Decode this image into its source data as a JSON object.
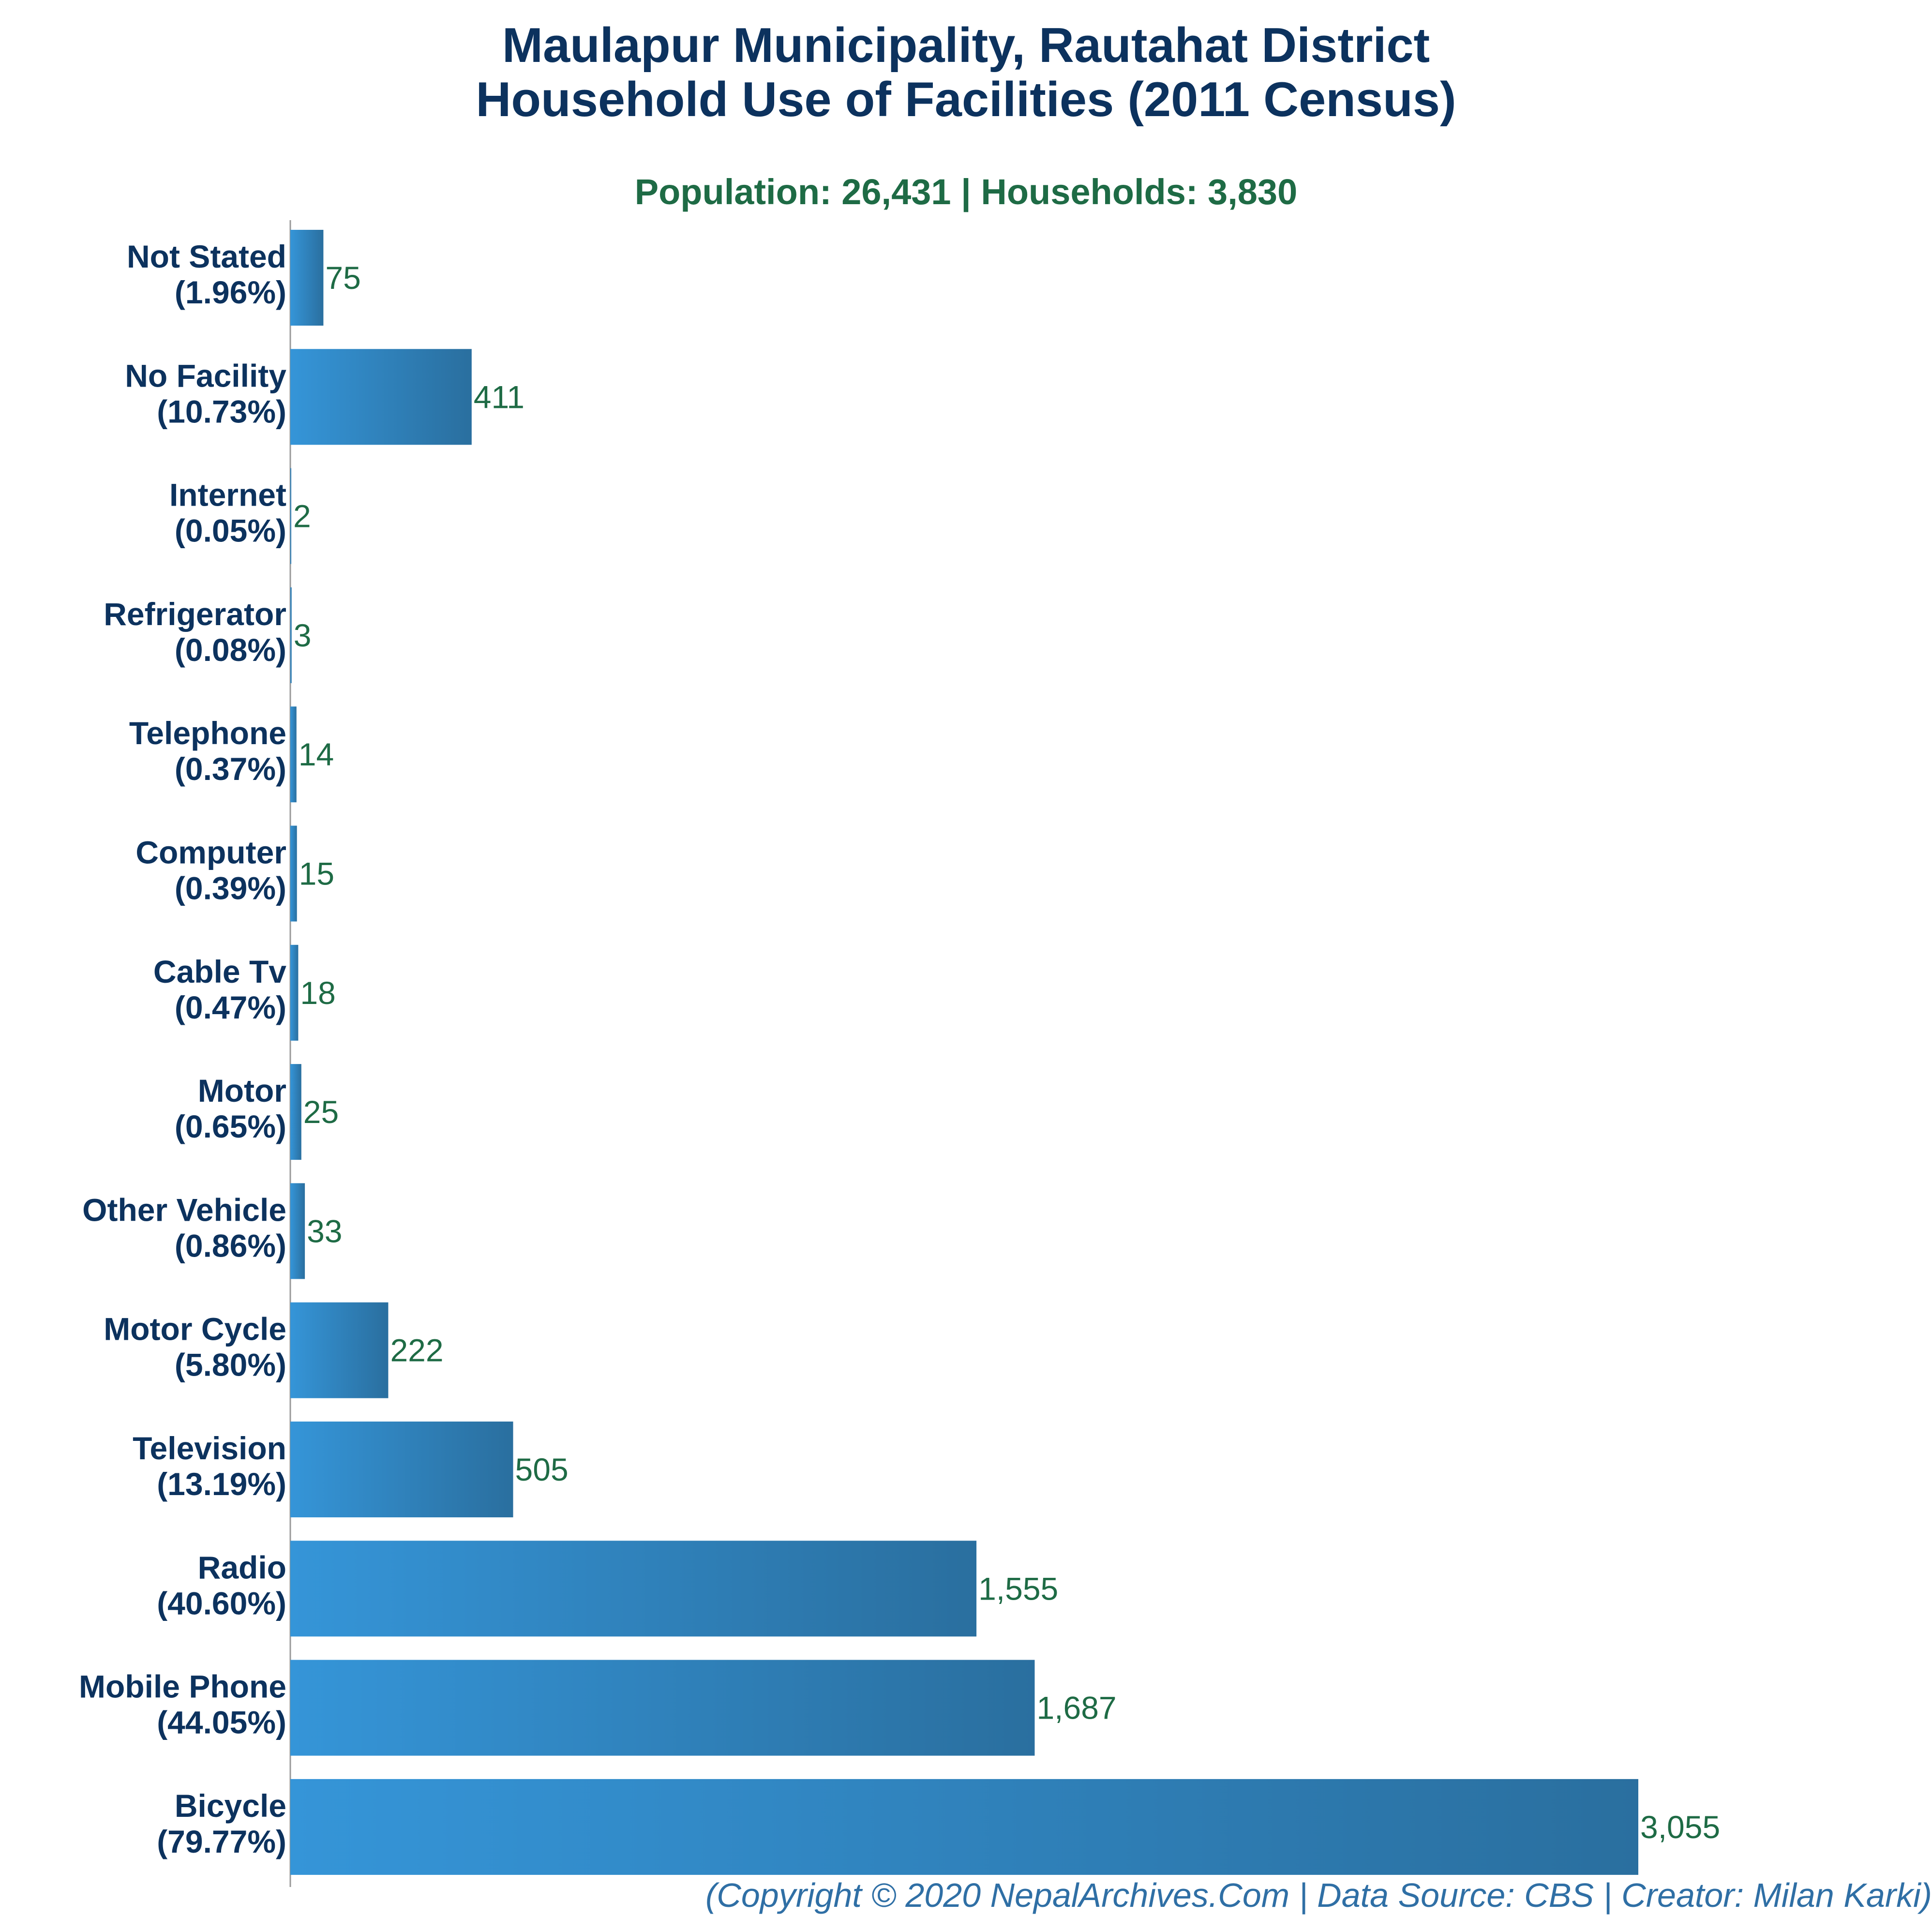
{
  "header": {
    "title_line1": "Maulapur Municipality, Rautahat District",
    "title_line2": "Household Use of Facilities (2011 Census)",
    "subtitle": "Population: 26,431 | Households: 3,830"
  },
  "footer": {
    "text": "(Copyright © 2020 NepalArchives.Com | Data Source: CBS | Creator: Milan Karki)"
  },
  "colors": {
    "bar_start": "#3595d8",
    "bar_end": "#2a6f9f",
    "title": "#0c325e",
    "value_label": "#1e6b45",
    "axis": "#999999"
  },
  "chart_data": {
    "type": "bar",
    "orientation": "horizontal",
    "categories": [
      "Not Stated",
      "No Facility",
      "Internet",
      "Refrigerator",
      "Telephone",
      "Computer",
      "Cable Tv",
      "Motor",
      "Other Vehicle",
      "Motor Cycle",
      "Television",
      "Radio",
      "Mobile Phone",
      "Bicycle"
    ],
    "percent_labels": [
      "(1.96%)",
      "(10.73%)",
      "(0.05%)",
      "(0.08%)",
      "(0.37%)",
      "(0.39%)",
      "(0.47%)",
      "(0.65%)",
      "(0.86%)",
      "(5.80%)",
      "(13.19%)",
      "(40.60%)",
      "(44.05%)",
      "(79.77%)"
    ],
    "values": [
      75,
      411,
      2,
      3,
      14,
      15,
      18,
      25,
      33,
      222,
      505,
      1555,
      1687,
      3055
    ],
    "value_labels": [
      "75",
      "411",
      "2",
      "3",
      "14",
      "15",
      "18",
      "25",
      "33",
      "222",
      "505",
      "1,555",
      "1,687",
      "3,055"
    ],
    "xlim": [
      0,
      3055
    ],
    "grid": false,
    "legend": "none"
  }
}
